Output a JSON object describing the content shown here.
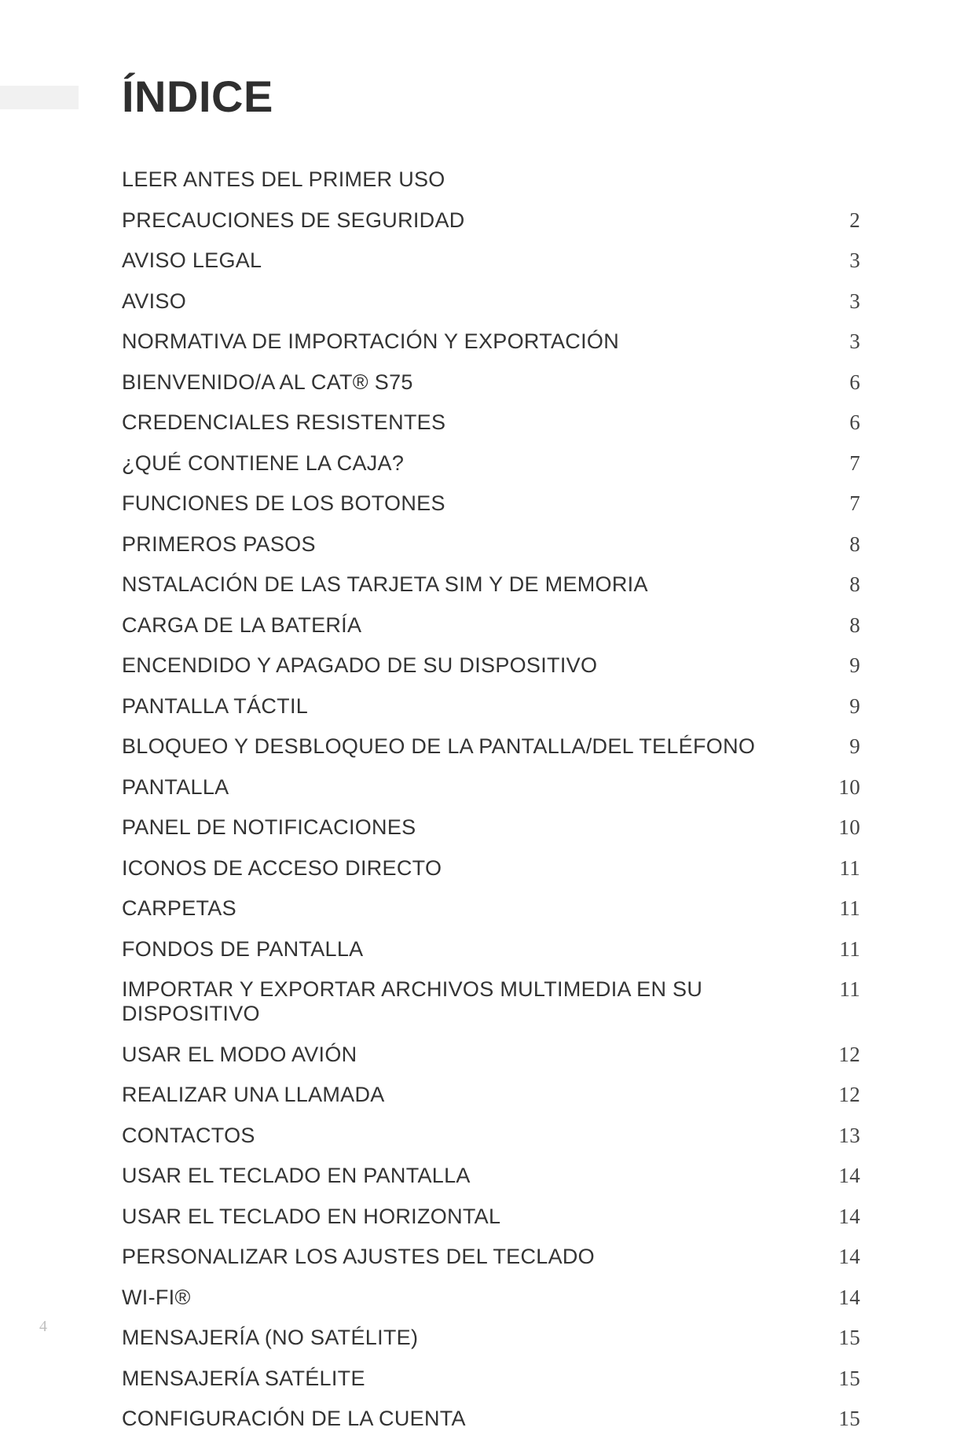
{
  "title": "ÍNDICE",
  "page_number": "4",
  "colors": {
    "background": "#ffffff",
    "accent_bar": "#f1f1f1",
    "title_text": "#2f2f2f",
    "entry_text": "#333333",
    "page_num_text": "#444444",
    "footer_page_text": "#bfbfbf"
  },
  "typography": {
    "title_fontsize": 56,
    "title_weight": 700,
    "entry_fontsize": 27,
    "footer_fontsize": 20,
    "font_family_main": "Arial Narrow",
    "font_family_page": "Georgia"
  },
  "toc": [
    {
      "label": "LEER ANTES DEL PRIMER USO",
      "page": ""
    },
    {
      "label": "PRECAUCIONES DE SEGURIDAD",
      "page": "2"
    },
    {
      "label": "AVISO LEGAL",
      "page": "3"
    },
    {
      "label": "AVISO",
      "page": "3"
    },
    {
      "label": "NORMATIVA DE IMPORTACIÓN Y EXPORTACIÓN",
      "page": "3"
    },
    {
      "label": "BIENVENIDO/A AL CAT® S75",
      "page": "6"
    },
    {
      "label": "CREDENCIALES RESISTENTES",
      "page": "6"
    },
    {
      "label": "¿QUÉ CONTIENE LA CAJA?",
      "page": "7"
    },
    {
      "label": "FUNCIONES DE LOS BOTONES",
      "page": "7"
    },
    {
      "label": "PRIMEROS PASOS",
      "page": "8"
    },
    {
      "label": "NSTALACIÓN DE LAS TARJETA SIM Y DE MEMORIA",
      "page": "8"
    },
    {
      "label": "CARGA DE LA BATERÍA",
      "page": "8"
    },
    {
      "label": "ENCENDIDO Y APAGADO DE SU DISPOSITIVO",
      "page": "9"
    },
    {
      "label": "PANTALLA TÁCTIL",
      "page": "9"
    },
    {
      "label": "BLOQUEO Y DESBLOQUEO DE LA PANTALLA/DEL TELÉFONO",
      "page": "9"
    },
    {
      "label": "PANTALLA",
      "page": "10"
    },
    {
      "label": "PANEL DE NOTIFICACIONES",
      "page": "10"
    },
    {
      "label": "ICONOS DE ACCESO DIRECTO",
      "page": "11"
    },
    {
      "label": "CARPETAS",
      "page": "11"
    },
    {
      "label": "FONDOS DE PANTALLA",
      "page": "11"
    },
    {
      "label": "IMPORTAR Y EXPORTAR ARCHIVOS MULTIMEDIA EN SU DISPOSITIVO",
      "page": "11"
    },
    {
      "label": "USAR EL MODO AVIÓN",
      "page": "12"
    },
    {
      "label": "REALIZAR UNA LLAMADA",
      "page": "12"
    },
    {
      "label": "CONTACTOS",
      "page": "13"
    },
    {
      "label": "USAR EL TECLADO EN PANTALLA",
      "page": "14"
    },
    {
      "label": "USAR EL TECLADO EN HORIZONTAL",
      "page": "14"
    },
    {
      "label": "PERSONALIZAR LOS AJUSTES DEL TECLADO",
      "page": "14"
    },
    {
      "label": "WI-FI®",
      "page": "14"
    },
    {
      "label": "MENSAJERÍA (NO SATÉLITE)",
      "page": "15"
    },
    {
      "label": "MENSAJERÍA SATÉLITE",
      "page": "15"
    },
    {
      "label": "CONFIGURACIÓN DE LA CUENTA",
      "page": "15"
    }
  ]
}
